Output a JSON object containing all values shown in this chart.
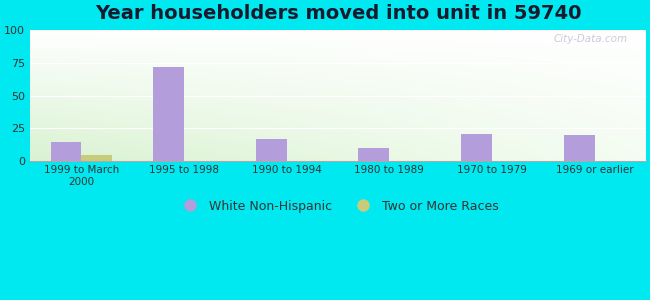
{
  "title": "Year householders moved into unit in 59740",
  "categories": [
    "1999 to March\n2000",
    "1995 to 1998",
    "1990 to 1994",
    "1980 to 1989",
    "1970 to 1979",
    "1969 or earlier"
  ],
  "white_non_hispanic": [
    15,
    72,
    17,
    10,
    21,
    20
  ],
  "two_or_more_races": [
    5,
    0,
    0,
    0,
    0,
    0
  ],
  "bar_color_white": "#b39ddb",
  "bar_color_two": "#c8cc7a",
  "ylim": [
    0,
    100
  ],
  "yticks": [
    0,
    25,
    50,
    75,
    100
  ],
  "background_outer": "#00e8f0",
  "watermark": "City-Data.com",
  "legend_white": "White Non-Hispanic",
  "legend_two": "Two or More Races",
  "title_fontsize": 14,
  "bar_width": 0.3
}
